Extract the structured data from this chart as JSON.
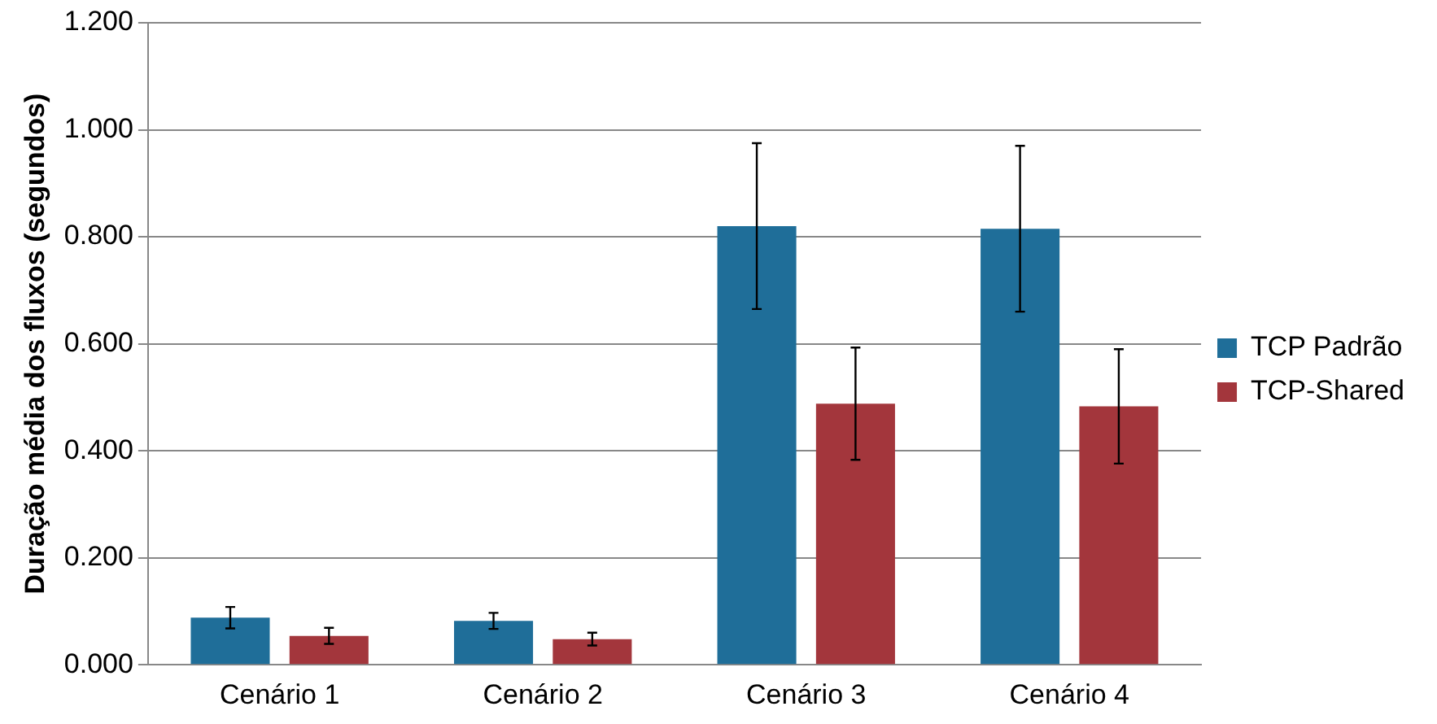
{
  "chart_data": {
    "type": "bar",
    "ylabel": "Duração média dos fluxos (segundos)",
    "categories": [
      "Cenário 1",
      "Cenário 2",
      "Cenário 3",
      "Cenário 4"
    ],
    "series": [
      {
        "name": "TCP Padrão",
        "color": "#1f6e99",
        "values": [
          0.088,
          0.082,
          0.82,
          0.815
        ],
        "errors": [
          0.02,
          0.015,
          0.155,
          0.155
        ]
      },
      {
        "name": "TCP-Shared",
        "color": "#a3363c",
        "values": [
          0.054,
          0.048,
          0.488,
          0.483
        ],
        "errors": [
          0.015,
          0.012,
          0.105,
          0.107
        ]
      }
    ],
    "ylim": [
      0,
      1.2
    ],
    "yticks": [
      {
        "value": 0,
        "label": "0.000"
      },
      {
        "value": 0.2,
        "label": "0.200"
      },
      {
        "value": 0.4,
        "label": "0.400"
      },
      {
        "value": 0.6,
        "label": "0.600"
      },
      {
        "value": 0.8,
        "label": "0.800"
      },
      {
        "value": 1,
        "label": "1.000"
      },
      {
        "value": 1.2,
        "label": "1.200"
      }
    ],
    "grid": "y",
    "legend": "right"
  }
}
